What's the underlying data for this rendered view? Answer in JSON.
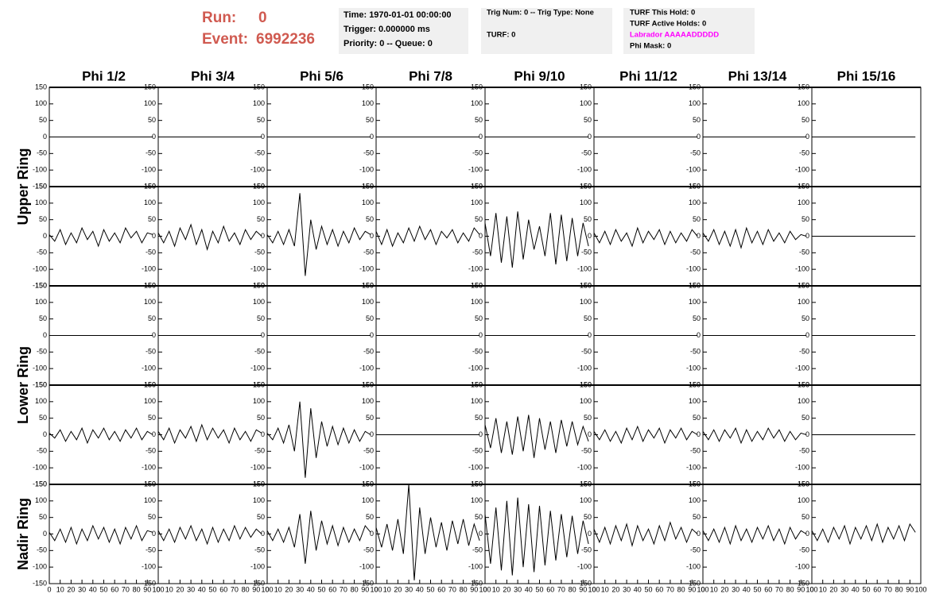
{
  "header": {
    "run_label": "Run:",
    "run": "0",
    "event_label": "Event:",
    "event": "6992236"
  },
  "info_boxes": [
    {
      "lines": [
        "Time: 1970-01-01 00:00:00",
        "Trigger: 0.000000 ms",
        "Priority: 0 -- Queue: 0"
      ]
    },
    {
      "lines": [
        "Trig Num: 0 -- Trig Type: None",
        "TURF: 0"
      ]
    },
    {
      "lines": [
        "TURF This Hold: 0",
        "TURF Active Holds: 0",
        "Labrador AAAAADDDDD",
        "Phi Mask: 0"
      ]
    }
  ],
  "chart_data": {
    "type": "line",
    "columns": [
      "Phi 1/2",
      "Phi 3/4",
      "Phi 5/6",
      "Phi 7/8",
      "Phi 9/10",
      "Phi 11/12",
      "Phi 13/14",
      "Phi 15/16"
    ],
    "rings": [
      "Upper Ring",
      "Lower Ring",
      "Nadir Ring"
    ],
    "color": "#000000",
    "xlim": [
      0,
      100
    ],
    "xticks": [
      0,
      10,
      20,
      30,
      40,
      50,
      60,
      70,
      80,
      90,
      100
    ],
    "ylim": [
      -150,
      150
    ],
    "yticks": [
      -150,
      -100,
      -50,
      0,
      50,
      100,
      150
    ],
    "x": [
      0,
      5,
      10,
      15,
      20,
      25,
      30,
      35,
      40,
      45,
      50,
      55,
      60,
      65,
      70,
      75,
      80,
      85,
      90,
      95
    ],
    "panels": [
      {
        "values": [
          0,
          0,
          0,
          0,
          0,
          0,
          0,
          0,
          0,
          0,
          0,
          0,
          0,
          0,
          0,
          0,
          0,
          0,
          0,
          0
        ]
      },
      {
        "values": [
          0,
          0,
          0,
          0,
          0,
          0,
          0,
          0,
          0,
          0,
          0,
          0,
          0,
          0,
          0,
          0,
          0,
          0,
          0,
          0
        ]
      },
      {
        "values": [
          0,
          0,
          0,
          0,
          0,
          0,
          0,
          0,
          0,
          0,
          0,
          0,
          0,
          0,
          0,
          0,
          0,
          0,
          0,
          0
        ]
      },
      {
        "values": [
          0,
          0,
          0,
          0,
          0,
          0,
          0,
          0,
          0,
          0,
          0,
          0,
          0,
          0,
          0,
          0,
          0,
          0,
          0,
          0
        ]
      },
      {
        "values": [
          0,
          0,
          0,
          0,
          0,
          0,
          0,
          0,
          0,
          0,
          0,
          0,
          0,
          0,
          0,
          0,
          0,
          0,
          0,
          0
        ]
      },
      {
        "values": [
          0,
          0,
          0,
          0,
          0,
          0,
          0,
          0,
          0,
          0,
          0,
          0,
          0,
          0,
          0,
          0,
          0,
          0,
          0,
          0
        ]
      },
      {
        "values": [
          0,
          0,
          0,
          0,
          0,
          0,
          0,
          0,
          0,
          0,
          0,
          0,
          0,
          0,
          0,
          0,
          0,
          0,
          0,
          0
        ]
      },
      {
        "values": [
          0,
          0,
          0,
          0,
          0,
          0,
          0,
          0,
          0,
          0,
          0,
          0,
          0,
          0,
          0,
          0,
          0,
          0,
          0,
          0
        ]
      },
      {
        "values": [
          5,
          -15,
          20,
          -25,
          10,
          -20,
          25,
          -10,
          15,
          -30,
          20,
          -15,
          10,
          -20,
          25,
          -5,
          15,
          -20,
          10,
          5
        ]
      },
      {
        "values": [
          10,
          -20,
          15,
          -30,
          25,
          -10,
          35,
          -25,
          20,
          -40,
          15,
          -20,
          30,
          -15,
          10,
          -25,
          20,
          -10,
          15,
          0
        ]
      },
      {
        "values": [
          5,
          -20,
          15,
          -25,
          20,
          -30,
          130,
          -120,
          50,
          -40,
          30,
          -25,
          20,
          -30,
          15,
          -20,
          25,
          -10,
          15,
          5
        ]
      },
      {
        "values": [
          15,
          -25,
          20,
          -30,
          10,
          -20,
          25,
          -15,
          30,
          -10,
          20,
          -25,
          15,
          -5,
          20,
          -20,
          10,
          -15,
          25,
          5
        ]
      },
      {
        "values": [
          40,
          -60,
          70,
          -80,
          60,
          -95,
          75,
          -70,
          50,
          -40,
          30,
          -60,
          70,
          -85,
          65,
          -75,
          55,
          -60,
          40,
          -30
        ]
      },
      {
        "values": [
          10,
          -20,
          15,
          -25,
          20,
          -15,
          10,
          -30,
          25,
          -20,
          15,
          -10,
          20,
          -25,
          15,
          -20,
          10,
          -15,
          20,
          0
        ]
      },
      {
        "values": [
          10,
          -15,
          20,
          -25,
          15,
          -30,
          20,
          -35,
          25,
          -20,
          15,
          -25,
          20,
          -15,
          10,
          -20,
          15,
          -10,
          5,
          0
        ]
      },
      {
        "values": [
          0,
          0,
          0,
          0,
          0,
          0,
          0,
          0,
          0,
          0,
          0,
          0,
          0,
          0,
          0,
          0,
          0,
          0,
          0,
          0
        ]
      },
      {
        "values": [
          0,
          0,
          0,
          0,
          0,
          0,
          0,
          0,
          0,
          0,
          0,
          0,
          0,
          0,
          0,
          0,
          0,
          0,
          0,
          0
        ]
      },
      {
        "values": [
          0,
          0,
          0,
          0,
          0,
          0,
          0,
          0,
          0,
          0,
          0,
          0,
          0,
          0,
          0,
          0,
          0,
          0,
          0,
          0
        ]
      },
      {
        "values": [
          0,
          0,
          0,
          0,
          0,
          0,
          0,
          0,
          0,
          0,
          0,
          0,
          0,
          0,
          0,
          0,
          0,
          0,
          0,
          0
        ]
      },
      {
        "values": [
          0,
          0,
          0,
          0,
          0,
          0,
          0,
          0,
          0,
          0,
          0,
          0,
          0,
          0,
          0,
          0,
          0,
          0,
          0,
          0
        ]
      },
      {
        "values": [
          0,
          0,
          0,
          0,
          0,
          0,
          0,
          0,
          0,
          0,
          0,
          0,
          0,
          0,
          0,
          0,
          0,
          0,
          0,
          0
        ]
      },
      {
        "values": [
          0,
          0,
          0,
          0,
          0,
          0,
          0,
          0,
          0,
          0,
          0,
          0,
          0,
          0,
          0,
          0,
          0,
          0,
          0,
          0
        ]
      },
      {
        "values": [
          0,
          0,
          0,
          0,
          0,
          0,
          0,
          0,
          0,
          0,
          0,
          0,
          0,
          0,
          0,
          0,
          0,
          0,
          0,
          0
        ]
      },
      {
        "values": [
          0,
          0,
          0,
          0,
          0,
          0,
          0,
          0,
          0,
          0,
          0,
          0,
          0,
          0,
          0,
          0,
          0,
          0,
          0,
          0
        ]
      },
      {
        "values": [
          5,
          -10,
          15,
          -20,
          10,
          -15,
          20,
          -25,
          15,
          -10,
          20,
          -15,
          10,
          -20,
          15,
          -10,
          20,
          -15,
          10,
          0
        ]
      },
      {
        "values": [
          10,
          -15,
          20,
          -25,
          15,
          -10,
          25,
          -20,
          30,
          -15,
          20,
          -10,
          15,
          -25,
          20,
          -15,
          10,
          -20,
          15,
          5
        ]
      },
      {
        "values": [
          5,
          -15,
          20,
          -25,
          30,
          -50,
          100,
          -130,
          80,
          -70,
          40,
          -35,
          25,
          -30,
          20,
          -25,
          15,
          -20,
          10,
          0
        ]
      },
      {
        "values": [
          0,
          0,
          0,
          0,
          0,
          0,
          0,
          0,
          0,
          0,
          0,
          0,
          0,
          0,
          0,
          0,
          0,
          0,
          0,
          0
        ]
      },
      {
        "values": [
          30,
          -40,
          50,
          -55,
          40,
          -60,
          55,
          -50,
          60,
          -70,
          50,
          -45,
          40,
          -55,
          45,
          -35,
          40,
          -30,
          25,
          -20
        ]
      },
      {
        "values": [
          10,
          -15,
          15,
          -20,
          10,
          -25,
          20,
          -15,
          25,
          -20,
          15,
          -10,
          20,
          -25,
          15,
          -10,
          20,
          -15,
          10,
          0
        ]
      },
      {
        "values": [
          10,
          -15,
          15,
          -20,
          15,
          -10,
          20,
          -25,
          15,
          -20,
          10,
          -15,
          20,
          -10,
          15,
          -20,
          10,
          -15,
          5,
          0
        ]
      },
      {
        "values": [
          0,
          0,
          0,
          0,
          0,
          0,
          0,
          0,
          0,
          0,
          0,
          0,
          0,
          0,
          0,
          0,
          0,
          0,
          0,
          0
        ]
      },
      {
        "values": [
          5,
          -20,
          15,
          -25,
          20,
          -30,
          15,
          -20,
          25,
          -15,
          20,
          -25,
          15,
          -30,
          20,
          -15,
          25,
          -20,
          10,
          5
        ]
      },
      {
        "values": [
          10,
          -20,
          15,
          -25,
          20,
          -15,
          25,
          -20,
          15,
          -30,
          20,
          -25,
          15,
          -20,
          25,
          -15,
          20,
          -10,
          15,
          0
        ]
      },
      {
        "values": [
          10,
          -20,
          15,
          -25,
          20,
          -40,
          60,
          -90,
          70,
          -50,
          40,
          -30,
          25,
          -35,
          20,
          -25,
          15,
          -20,
          25,
          5
        ]
      },
      {
        "values": [
          20,
          -40,
          30,
          -50,
          45,
          -60,
          150,
          -140,
          80,
          -60,
          50,
          -40,
          35,
          -50,
          40,
          -30,
          45,
          -35,
          30,
          -20
        ]
      },
      {
        "values": [
          60,
          -90,
          80,
          -110,
          100,
          -125,
          110,
          -100,
          90,
          -115,
          85,
          -95,
          70,
          -80,
          60,
          -70,
          55,
          -60,
          40,
          -30
        ]
      },
      {
        "values": [
          15,
          -25,
          20,
          -30,
          25,
          -20,
          30,
          -35,
          25,
          -20,
          15,
          -30,
          25,
          -20,
          35,
          -15,
          20,
          -25,
          15,
          0
        ]
      },
      {
        "values": [
          10,
          -20,
          15,
          -25,
          20,
          -30,
          25,
          -20,
          15,
          -25,
          20,
          -15,
          25,
          -20,
          15,
          -30,
          20,
          -15,
          10,
          0
        ]
      },
      {
        "values": [
          10,
          -20,
          15,
          -25,
          20,
          -15,
          25,
          -30,
          20,
          -15,
          25,
          -20,
          30,
          -25,
          20,
          -15,
          25,
          -20,
          30,
          5
        ]
      }
    ]
  }
}
